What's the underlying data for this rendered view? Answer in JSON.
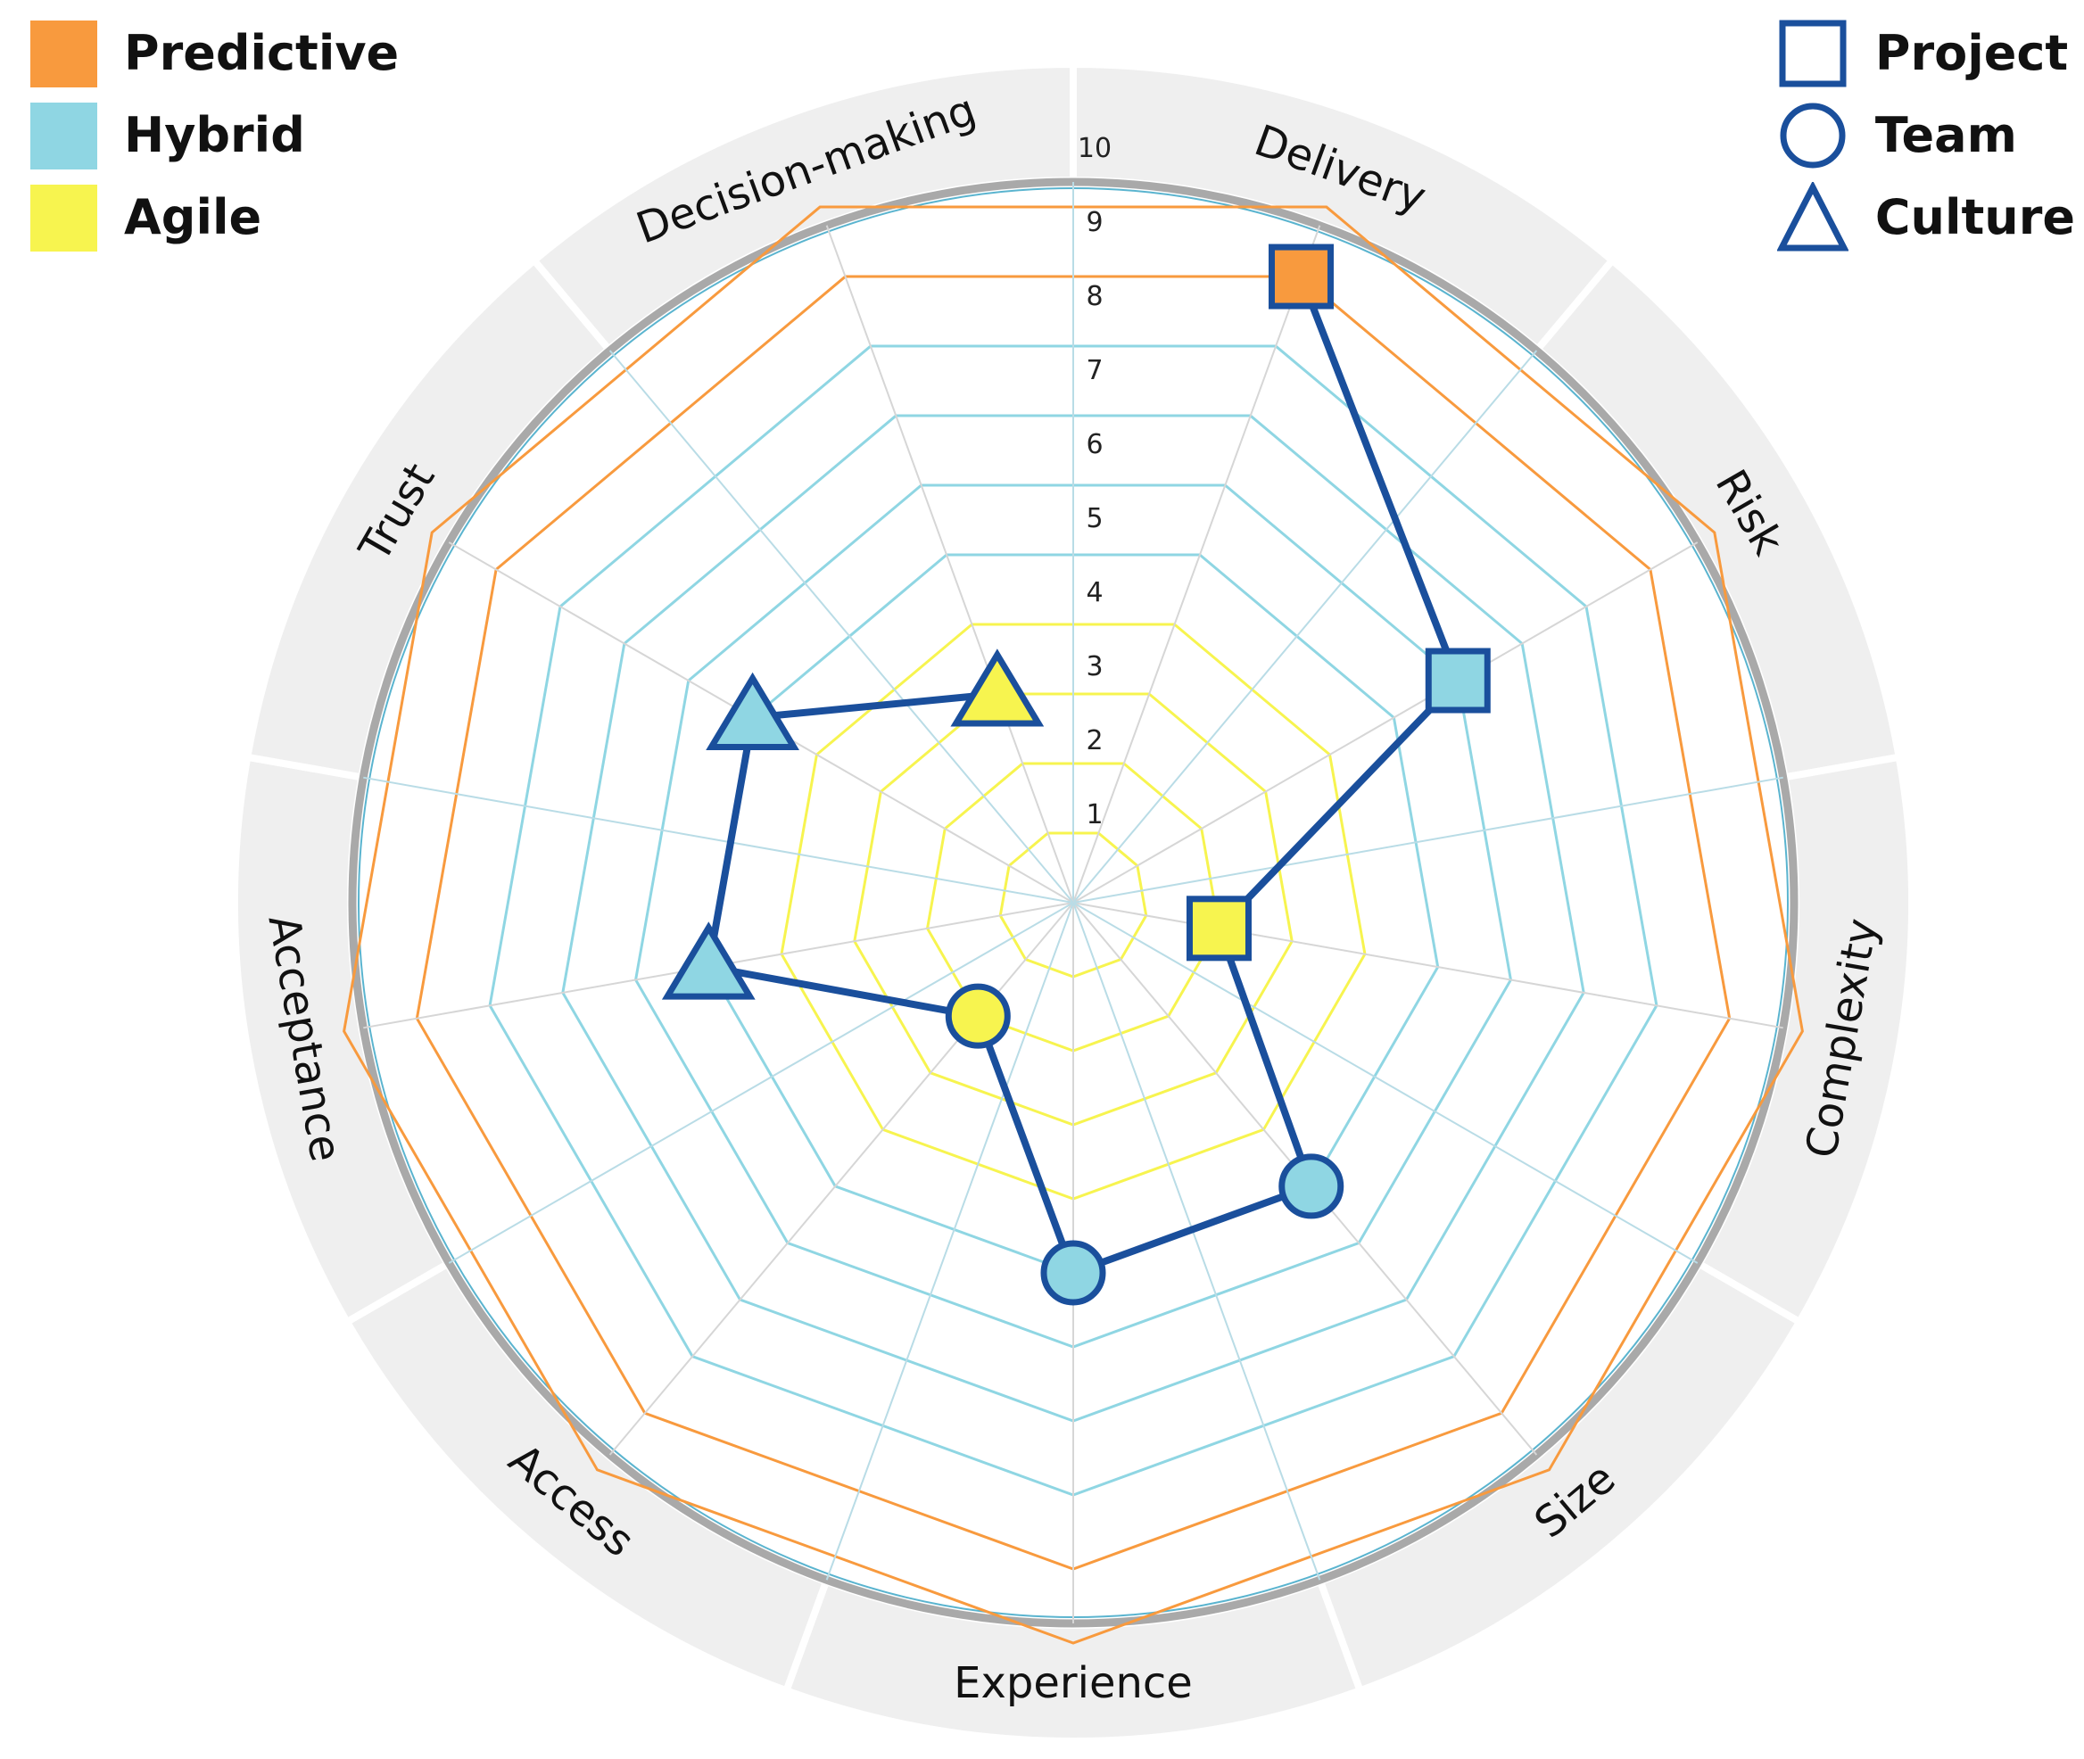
{
  "legend": {
    "zones": [
      {
        "label": "Predictive",
        "color": "#F89A3E"
      },
      {
        "label": "Hybrid",
        "color": "#8FD6E3"
      },
      {
        "label": "Agile",
        "color": "#F7F44F"
      }
    ],
    "shapes": [
      {
        "label": "Project",
        "shape": "square"
      },
      {
        "label": "Team",
        "shape": "circle"
      },
      {
        "label": "Culture",
        "shape": "triangle"
      }
    ]
  },
  "colors": {
    "predictive": "#F89A3E",
    "hybrid": "#8FD6E3",
    "agile": "#F7F44F",
    "path": "#1A4F9C",
    "band": "#EFEFEF",
    "outer_ring": "#A9A9A9"
  },
  "chart_data": {
    "type": "radar",
    "axes": [
      "Delivery",
      "Risk",
      "Complexity",
      "Size",
      "Experience",
      "Access",
      "Acceptance",
      "Trust",
      "Decision-making"
    ],
    "rlim": [
      0,
      10
    ],
    "ticks": [
      "1",
      "2",
      "3",
      "4",
      "5",
      "6",
      "7",
      "8",
      "9",
      "10"
    ],
    "zones": [
      {
        "name": "Agile",
        "levels": [
          1,
          2,
          3,
          4
        ]
      },
      {
        "name": "Hybrid",
        "levels": [
          5,
          6,
          7,
          8
        ]
      },
      {
        "name": "Predictive",
        "levels": [
          9,
          10
        ]
      }
    ],
    "points": [
      {
        "axis": "Delivery",
        "value": 9,
        "shape": "square",
        "zone": "Predictive"
      },
      {
        "axis": "Risk",
        "value": 6,
        "shape": "square",
        "zone": "Hybrid"
      },
      {
        "axis": "Complexity",
        "value": 2,
        "shape": "square",
        "zone": "Agile"
      },
      {
        "axis": "Size",
        "value": 5,
        "shape": "circle",
        "zone": "Hybrid"
      },
      {
        "axis": "Experience",
        "value": 5,
        "shape": "circle",
        "zone": "Hybrid"
      },
      {
        "axis": "Access",
        "value": 2,
        "shape": "circle",
        "zone": "Agile"
      },
      {
        "axis": "Acceptance",
        "value": 5,
        "shape": "triangle",
        "zone": "Hybrid"
      },
      {
        "axis": "Trust",
        "value": 5,
        "shape": "triangle",
        "zone": "Hybrid"
      },
      {
        "axis": "Decision-making",
        "value": 3,
        "shape": "triangle",
        "zone": "Agile"
      }
    ]
  }
}
